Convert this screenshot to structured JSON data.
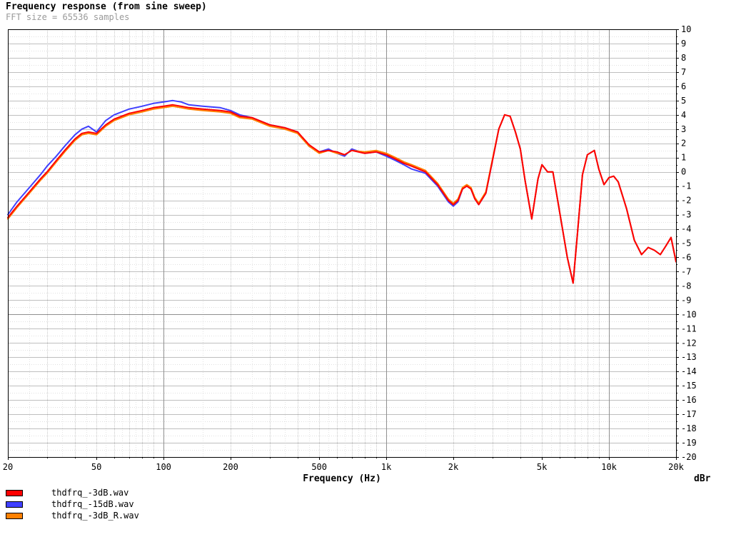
{
  "chart_data": {
    "type": "line",
    "title": "Frequency response (from sine sweep)",
    "subtitle": "FFT size = 65536 samples",
    "xlabel": "Frequency (Hz)",
    "ylabel": "dBr",
    "xscale": "log",
    "xlim": [
      20,
      20000
    ],
    "ylim": [
      -20,
      10
    ],
    "x_ticks": [
      20,
      50,
      100,
      200,
      500,
      1000,
      2000,
      5000,
      10000,
      20000
    ],
    "x_tick_labels": [
      "20",
      "50",
      "100",
      "200",
      "500",
      "1k",
      "2k",
      "5k",
      "10k",
      "20k"
    ],
    "y_ticks": [
      10,
      9,
      8,
      7,
      6,
      5,
      4,
      3,
      2,
      1,
      0,
      -1,
      -2,
      -3,
      -4,
      -5,
      -6,
      -7,
      -8,
      -9,
      -10,
      -11,
      -12,
      -13,
      -14,
      -15,
      -16,
      -17,
      -18,
      -19,
      -20
    ],
    "grid": true,
    "legend_position": "bottom-left",
    "series": [
      {
        "name": "thdfrq_-3dB.wav",
        "color": "#ff0000",
        "x": [
          20,
          22,
          25,
          28,
          30,
          33,
          36,
          40,
          43,
          46,
          50,
          55,
          60,
          70,
          80,
          90,
          100,
          110,
          120,
          130,
          150,
          180,
          200,
          220,
          250,
          300,
          350,
          400,
          450,
          500,
          550,
          600,
          650,
          700,
          800,
          900,
          1000,
          1100,
          1200,
          1300,
          1500,
          1700,
          1900,
          2000,
          2100,
          2200,
          2300,
          2400,
          2500,
          2600,
          2800,
          3000,
          3200,
          3400,
          3600,
          3800,
          4000,
          4200,
          4500,
          4800,
          5000,
          5300,
          5600,
          6000,
          6500,
          6900,
          7200,
          7600,
          8000,
          8600,
          9000,
          9500,
          10000,
          10500,
          11000,
          12000,
          13000,
          14000,
          15000,
          16000,
          17000,
          18000,
          19000,
          20000
        ],
        "values": [
          -3.2,
          -2.4,
          -1.4,
          -0.5,
          0.0,
          0.8,
          1.5,
          2.3,
          2.7,
          2.8,
          2.7,
          3.3,
          3.7,
          4.1,
          4.3,
          4.5,
          4.6,
          4.7,
          4.6,
          4.5,
          4.4,
          4.3,
          4.2,
          3.9,
          3.8,
          3.3,
          3.1,
          2.8,
          1.9,
          1.4,
          1.5,
          1.4,
          1.2,
          1.5,
          1.3,
          1.4,
          1.2,
          0.9,
          0.6,
          0.4,
          0.0,
          -0.9,
          -2.0,
          -2.3,
          -2.0,
          -1.2,
          -1.0,
          -1.2,
          -1.9,
          -2.3,
          -1.5,
          0.8,
          3.0,
          4.0,
          3.9,
          2.8,
          1.6,
          -0.6,
          -3.3,
          -0.5,
          0.5,
          0.0,
          0.0,
          -2.8,
          -6.0,
          -7.8,
          -4.5,
          -0.2,
          1.2,
          1.5,
          0.2,
          -0.9,
          -0.4,
          -0.3,
          -0.7,
          -2.6,
          -4.8,
          -5.8,
          -5.3,
          -5.5,
          -5.8,
          -5.2,
          -4.6,
          -6.3
        ]
      },
      {
        "name": "thdfrq_-15dB.wav",
        "color": "#4040ff",
        "x": [
          20,
          22,
          25,
          28,
          30,
          33,
          36,
          40,
          43,
          46,
          50,
          55,
          60,
          70,
          80,
          90,
          100,
          110,
          120,
          130,
          150,
          180,
          200,
          220,
          250,
          300,
          350,
          400,
          450,
          500,
          550,
          600,
          650,
          700,
          800,
          900,
          1000,
          1100,
          1200,
          1300,
          1500,
          1700,
          1900,
          2000,
          2100,
          2200,
          2300,
          2400,
          2500,
          2600,
          2800,
          3000,
          3200,
          3400,
          3600,
          3800,
          4000,
          4200,
          4500,
          4800,
          5000,
          5300,
          5600,
          6000,
          6500,
          6900,
          7200,
          7600,
          8000,
          8600,
          9000,
          9500,
          10000,
          10500,
          11000,
          12000,
          13000,
          14000,
          15000,
          16000,
          17000,
          18000,
          19000,
          20000
        ],
        "values": [
          -3.0,
          -2.1,
          -1.1,
          -0.2,
          0.4,
          1.1,
          1.8,
          2.6,
          3.0,
          3.2,
          2.8,
          3.6,
          4.0,
          4.4,
          4.6,
          4.8,
          4.9,
          5.0,
          4.9,
          4.7,
          4.6,
          4.5,
          4.3,
          4.0,
          3.8,
          3.3,
          3.1,
          2.8,
          1.8,
          1.4,
          1.6,
          1.3,
          1.1,
          1.6,
          1.3,
          1.4,
          1.1,
          0.8,
          0.5,
          0.2,
          -0.1,
          -1.0,
          -2.1,
          -2.4,
          -2.1,
          -1.2,
          -1.0,
          -1.2,
          -1.9,
          -2.3,
          -1.5,
          0.8,
          3.0,
          4.0,
          3.9,
          2.8,
          1.6,
          -0.6,
          -3.3,
          -0.5,
          0.5,
          0.0,
          0.0,
          -2.8,
          -6.0,
          -7.8,
          -4.5,
          -0.2,
          1.2,
          1.5,
          0.2,
          -0.9,
          -0.4,
          -0.3,
          -0.7,
          -2.6,
          -4.8,
          -5.8,
          -5.3,
          -5.5,
          -5.8,
          -5.2,
          -4.6,
          -6.3
        ]
      },
      {
        "name": "thdfrq_-3dB_R.wav",
        "color": "#ff8000",
        "x": [
          20,
          22,
          25,
          28,
          30,
          33,
          36,
          40,
          43,
          46,
          50,
          55,
          60,
          70,
          80,
          90,
          100,
          110,
          120,
          130,
          150,
          180,
          200,
          220,
          250,
          300,
          350,
          400,
          450,
          500,
          550,
          600,
          650,
          700,
          800,
          900,
          1000,
          1100,
          1200,
          1300,
          1500,
          1700,
          1900,
          2000,
          2100,
          2200,
          2300,
          2400,
          2500,
          2600,
          2800,
          3000,
          3200,
          3400,
          3600,
          3800,
          4000,
          4200,
          4500,
          4800,
          5000,
          5300,
          5600,
          6000,
          6500,
          6900,
          7200,
          7600,
          8000,
          8600,
          9000,
          9500,
          10000,
          10500,
          11000,
          12000,
          13000,
          14000,
          15000,
          16000,
          17000,
          18000,
          19000,
          20000
        ],
        "values": [
          -3.3,
          -2.5,
          -1.5,
          -0.6,
          -0.1,
          0.7,
          1.4,
          2.2,
          2.6,
          2.7,
          2.6,
          3.2,
          3.6,
          4.0,
          4.2,
          4.4,
          4.5,
          4.6,
          4.5,
          4.4,
          4.3,
          4.2,
          4.1,
          3.8,
          3.7,
          3.2,
          3.0,
          2.7,
          1.8,
          1.3,
          1.5,
          1.3,
          1.2,
          1.5,
          1.4,
          1.5,
          1.3,
          1.0,
          0.7,
          0.5,
          0.1,
          -0.8,
          -1.9,
          -2.2,
          -1.9,
          -1.1,
          -0.9,
          -1.1,
          -1.8,
          -2.2,
          -1.4,
          0.9,
          3.0,
          4.0,
          3.9,
          2.8,
          1.6,
          -0.6,
          -3.3,
          -0.5,
          0.5,
          0.0,
          0.0,
          -2.8,
          -6.0,
          -7.8,
          -4.5,
          -0.2,
          1.2,
          1.5,
          0.2,
          -0.9,
          -0.4,
          -0.3,
          -0.7,
          -2.6,
          -4.8,
          -5.8,
          -5.3,
          -5.5,
          -5.8,
          -5.2,
          -4.6,
          -6.3
        ]
      }
    ]
  }
}
